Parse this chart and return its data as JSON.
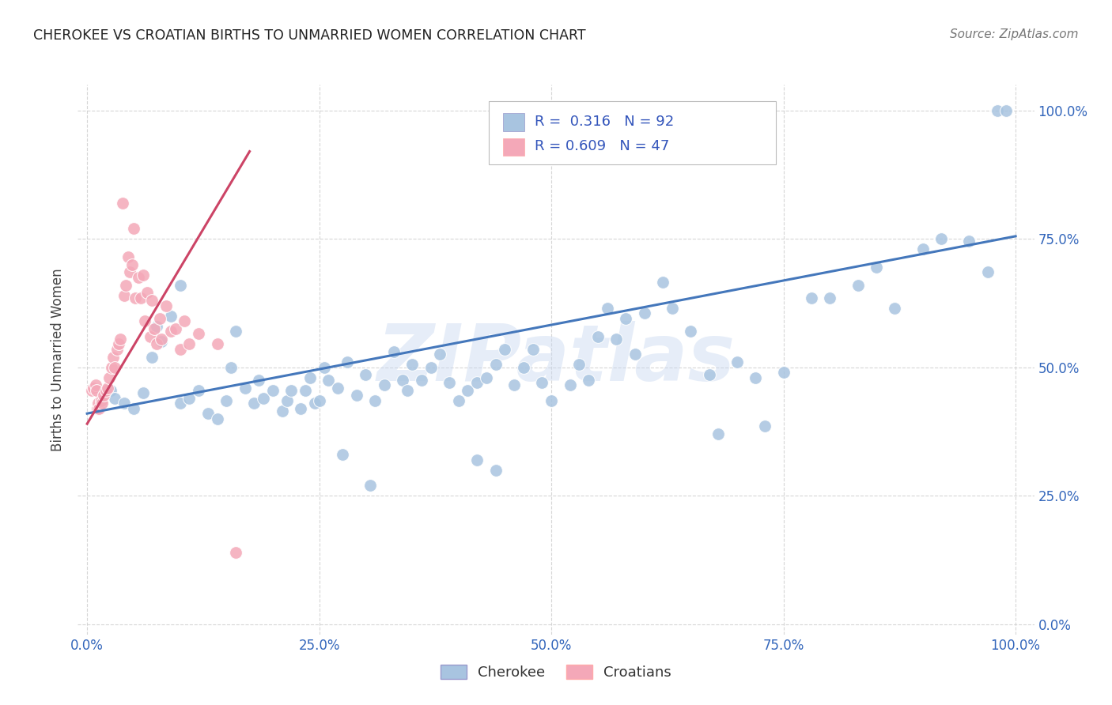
{
  "title": "CHEROKEE VS CROATIAN BIRTHS TO UNMARRIED WOMEN CORRELATION CHART",
  "source": "Source: ZipAtlas.com",
  "ylabel": "Births to Unmarried Women",
  "legend_blue_r": "R =  0.316",
  "legend_blue_n": "N = 92",
  "legend_pink_r": "R = 0.609",
  "legend_pink_n": "N = 47",
  "legend_label_blue": "Cherokee",
  "legend_label_pink": "Croatians",
  "watermark": "ZIPatlas",
  "blue_color": "#a8c4e0",
  "pink_color": "#f4a8b8",
  "blue_line_color": "#4477bb",
  "pink_line_color": "#cc4466",
  "background_color": "#ffffff",
  "grid_color": "#cccccc",
  "blue_line_x": [
    0.0,
    1.0
  ],
  "blue_line_y": [
    0.41,
    0.755
  ],
  "pink_line_x": [
    0.0,
    0.175
  ],
  "pink_line_y": [
    0.39,
    0.92
  ],
  "blue_x": [
    0.015,
    0.025,
    0.03,
    0.04,
    0.05,
    0.06,
    0.07,
    0.075,
    0.08,
    0.09,
    0.1,
    0.1,
    0.11,
    0.12,
    0.13,
    0.14,
    0.15,
    0.155,
    0.16,
    0.17,
    0.18,
    0.185,
    0.19,
    0.2,
    0.21,
    0.215,
    0.22,
    0.23,
    0.235,
    0.24,
    0.245,
    0.25,
    0.255,
    0.26,
    0.27,
    0.28,
    0.29,
    0.3,
    0.31,
    0.32,
    0.33,
    0.34,
    0.345,
    0.35,
    0.36,
    0.37,
    0.38,
    0.39,
    0.4,
    0.41,
    0.42,
    0.43,
    0.44,
    0.45,
    0.46,
    0.47,
    0.48,
    0.49,
    0.5,
    0.52,
    0.53,
    0.54,
    0.55,
    0.56,
    0.57,
    0.58,
    0.59,
    0.6,
    0.62,
    0.63,
    0.65,
    0.67,
    0.7,
    0.72,
    0.75,
    0.78,
    0.8,
    0.83,
    0.85,
    0.87,
    0.9,
    0.92,
    0.95,
    0.97,
    0.275,
    0.305,
    0.42,
    0.44,
    0.68,
    0.73,
    0.98,
    0.99
  ],
  "blue_y": [
    0.43,
    0.455,
    0.44,
    0.43,
    0.42,
    0.45,
    0.52,
    0.58,
    0.55,
    0.6,
    0.43,
    0.66,
    0.44,
    0.455,
    0.41,
    0.4,
    0.435,
    0.5,
    0.57,
    0.46,
    0.43,
    0.475,
    0.44,
    0.455,
    0.415,
    0.435,
    0.455,
    0.42,
    0.455,
    0.48,
    0.43,
    0.435,
    0.5,
    0.475,
    0.46,
    0.51,
    0.445,
    0.485,
    0.435,
    0.465,
    0.53,
    0.475,
    0.455,
    0.505,
    0.475,
    0.5,
    0.525,
    0.47,
    0.435,
    0.455,
    0.47,
    0.48,
    0.505,
    0.535,
    0.465,
    0.5,
    0.535,
    0.47,
    0.435,
    0.465,
    0.505,
    0.475,
    0.56,
    0.615,
    0.555,
    0.595,
    0.525,
    0.605,
    0.665,
    0.615,
    0.57,
    0.485,
    0.51,
    0.48,
    0.49,
    0.635,
    0.635,
    0.66,
    0.695,
    0.615,
    0.73,
    0.75,
    0.745,
    0.685,
    0.33,
    0.27,
    0.32,
    0.3,
    0.37,
    0.385,
    1.0,
    1.0
  ],
  "pink_x": [
    0.005,
    0.007,
    0.009,
    0.01,
    0.011,
    0.012,
    0.013,
    0.015,
    0.016,
    0.018,
    0.02,
    0.022,
    0.024,
    0.026,
    0.028,
    0.03,
    0.032,
    0.034,
    0.036,
    0.038,
    0.04,
    0.042,
    0.044,
    0.046,
    0.048,
    0.05,
    0.052,
    0.055,
    0.058,
    0.06,
    0.062,
    0.065,
    0.068,
    0.07,
    0.072,
    0.075,
    0.078,
    0.08,
    0.085,
    0.09,
    0.095,
    0.1,
    0.105,
    0.11,
    0.12,
    0.14,
    0.16
  ],
  "pink_y": [
    0.455,
    0.46,
    0.465,
    0.455,
    0.42,
    0.43,
    0.42,
    0.435,
    0.43,
    0.445,
    0.455,
    0.46,
    0.48,
    0.5,
    0.52,
    0.5,
    0.535,
    0.545,
    0.555,
    0.82,
    0.64,
    0.66,
    0.715,
    0.685,
    0.7,
    0.77,
    0.635,
    0.675,
    0.635,
    0.68,
    0.59,
    0.645,
    0.56,
    0.63,
    0.575,
    0.545,
    0.595,
    0.555,
    0.62,
    0.57,
    0.575,
    0.535,
    0.59,
    0.545,
    0.565,
    0.545,
    0.14
  ],
  "xlim": [
    -0.01,
    1.02
  ],
  "ylim": [
    -0.02,
    1.05
  ],
  "tick_vals": [
    0.0,
    0.25,
    0.5,
    0.75,
    1.0
  ],
  "tick_labels": [
    "0.0%",
    "25.0%",
    "50.0%",
    "75.0%",
    "100.0%"
  ]
}
